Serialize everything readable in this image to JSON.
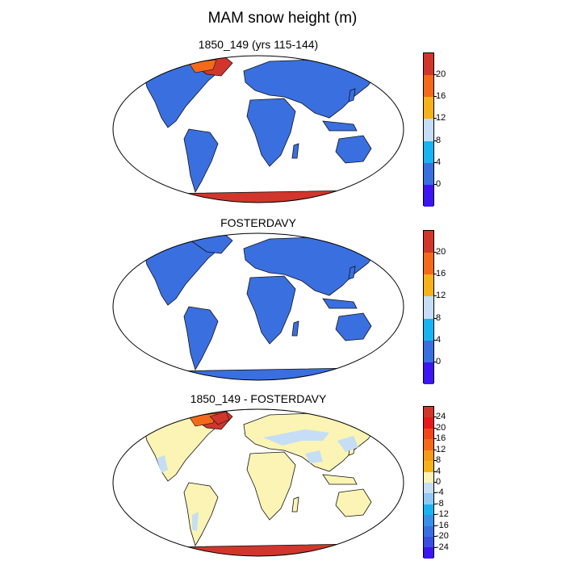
{
  "title": "MAM snow height (m)",
  "colors": {
    "navy": "#3d14f2",
    "blue": "#3a6fe0",
    "cyan": "#19b4f0",
    "lightblue": "#c5def5",
    "cream": "#fbf4b4",
    "gold": "#f6b21a",
    "orange": "#f46a1a",
    "red": "#d1362c",
    "land_base": "#3a6fe0"
  },
  "panels": [
    {
      "title": "1850_149 (yrs 115-144)",
      "colorbar": {
        "labels": [
          "20",
          "16",
          "12",
          "8",
          "4",
          "0"
        ],
        "colors": [
          "#d1362c",
          "#f46a1a",
          "#f6b21a",
          "#c5def5",
          "#19b4f0",
          "#3a6fe0",
          "#3d14f2"
        ]
      }
    },
    {
      "title": "FOSTERDAVY",
      "colorbar": {
        "labels": [
          "20",
          "16",
          "12",
          "8",
          "4",
          "0"
        ],
        "colors": [
          "#d1362c",
          "#f46a1a",
          "#f6b21a",
          "#c5def5",
          "#19b4f0",
          "#3a6fe0",
          "#3d14f2"
        ]
      }
    },
    {
      "title": "1850_149 - FOSTERDAVY",
      "colorbar": {
        "labels": [
          "24",
          "20",
          "16",
          "12",
          "8",
          "4",
          "0",
          "-4",
          "-8",
          "-12",
          "-16",
          "-20",
          "-24"
        ],
        "colors": [
          "#d1362c",
          "#e8171a",
          "#f2461a",
          "#f46a1a",
          "#f69a1a",
          "#f6b21a",
          "#fbf4b4",
          "#c5def5",
          "#8fc8f0",
          "#19b4f0",
          "#3a90e8",
          "#3a6fe0",
          "#3a4fe0",
          "#3d14f2"
        ]
      }
    }
  ]
}
